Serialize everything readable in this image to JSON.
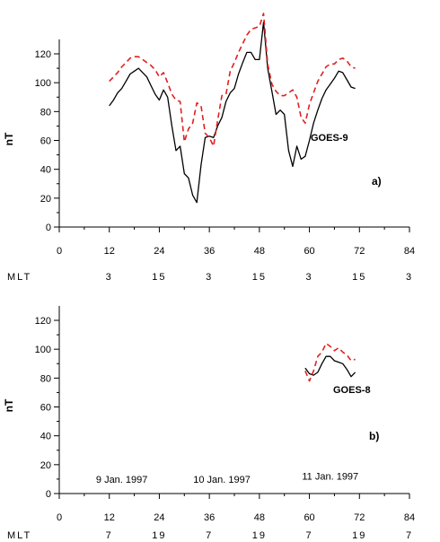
{
  "chart_data": [
    {
      "type": "line",
      "panel_label": "a)",
      "ylabel": "nT",
      "xlim": [
        0,
        84
      ],
      "ylim": [
        0,
        130
      ],
      "x_ticks": [
        0,
        12,
        24,
        36,
        48,
        60,
        72,
        84
      ],
      "x_tick_labels": [
        "0",
        "12",
        "24",
        "36",
        "48",
        "60",
        "72",
        "84"
      ],
      "y_ticks": [
        0,
        20,
        40,
        60,
        80,
        100,
        120
      ],
      "y_tick_labels": [
        "0",
        "20",
        "40",
        "60",
        "80",
        "100",
        "120"
      ],
      "annotation": "GOES-9",
      "mlt_label": "MLT",
      "mlt_values": [
        "3",
        "15",
        "3",
        "15",
        "3",
        "15",
        "3"
      ],
      "mlt_positions": [
        12,
        24,
        36,
        48,
        60,
        72,
        84
      ],
      "series": [
        {
          "style": "solid",
          "color": "#000000",
          "x": [
            12,
            13,
            14,
            15,
            16,
            17,
            18,
            19,
            20,
            21,
            22,
            23,
            24,
            25,
            26,
            27,
            28,
            29,
            30,
            31,
            32,
            33,
            34,
            35,
            36,
            37,
            38,
            39,
            40,
            41,
            42,
            43,
            44,
            45,
            46,
            47,
            48,
            49,
            50,
            51,
            52,
            53,
            54,
            55,
            56,
            57,
            58,
            59,
            60,
            61,
            62,
            63,
            64,
            65,
            66,
            67,
            68,
            69,
            70,
            71
          ],
          "y": [
            84,
            88,
            93,
            96,
            101,
            106,
            108,
            110,
            107,
            104,
            98,
            92,
            88,
            95,
            90,
            70,
            53,
            56,
            37,
            34,
            22,
            17,
            43,
            62,
            63,
            62,
            70,
            76,
            87,
            93,
            96,
            106,
            114,
            121,
            121,
            116,
            116,
            142,
            110,
            94,
            78,
            81,
            78,
            53,
            42,
            56,
            47,
            49,
            60,
            72,
            81,
            89,
            95,
            99,
            103,
            108,
            107,
            102,
            97,
            96
          ]
        },
        {
          "style": "dashed",
          "color": "#e02020",
          "x": [
            12,
            13,
            14,
            15,
            16,
            17,
            18,
            19,
            20,
            21,
            22,
            23,
            24,
            25,
            26,
            27,
            28,
            29,
            30,
            31,
            32,
            33,
            34,
            35,
            36,
            37,
            38,
            39,
            40,
            41,
            42,
            43,
            44,
            45,
            46,
            47,
            48,
            49,
            50,
            51,
            52,
            53,
            54,
            55,
            56,
            57,
            58,
            59,
            60,
            61,
            62,
            63,
            64,
            65,
            66,
            67,
            68,
            69,
            70,
            71
          ],
          "y": [
            101,
            104,
            107,
            111,
            114,
            117,
            118,
            118,
            116,
            114,
            112,
            109,
            104,
            107,
            100,
            92,
            88,
            87,
            59,
            68,
            72,
            86,
            84,
            65,
            62,
            56,
            74,
            91,
            92,
            108,
            114,
            121,
            127,
            133,
            137,
            138,
            139,
            148,
            113,
            99,
            94,
            91,
            91,
            93,
            95,
            90,
            76,
            72,
            85,
            93,
            101,
            106,
            111,
            113,
            113,
            116,
            117,
            115,
            111,
            110
          ]
        }
      ]
    },
    {
      "type": "line",
      "panel_label": "b)",
      "ylabel": "nT",
      "xlim": [
        0,
        84
      ],
      "ylim": [
        0,
        130
      ],
      "x_ticks": [
        0,
        12,
        24,
        36,
        48,
        60,
        72,
        84
      ],
      "x_tick_labels": [
        "0",
        "12",
        "24",
        "36",
        "48",
        "60",
        "72",
        "84"
      ],
      "y_ticks": [
        0,
        20,
        40,
        60,
        80,
        100,
        120
      ],
      "y_tick_labels": [
        "0",
        "20",
        "40",
        "60",
        "80",
        "100",
        "120"
      ],
      "annotation": "GOES-8",
      "dates": [
        {
          "text": "9 Jan. 1997",
          "x": 15,
          "y": 10
        },
        {
          "text": "10 Jan. 1997",
          "x": 39,
          "y": 10
        },
        {
          "text": "11 Jan. 1997",
          "x": 65,
          "y": 12
        }
      ],
      "mlt_label": "MLT",
      "mlt_values": [
        "7",
        "19",
        "7",
        "19",
        "7",
        "19",
        "7"
      ],
      "mlt_positions": [
        12,
        24,
        36,
        48,
        60,
        72,
        84
      ],
      "series": [
        {
          "style": "solid",
          "color": "#000000",
          "x": [
            59,
            60,
            61,
            62,
            63,
            64,
            65,
            66,
            67,
            68,
            69,
            70,
            71
          ],
          "y": [
            87,
            83,
            82,
            84,
            90,
            95,
            95,
            92,
            91,
            90,
            86,
            81,
            84
          ]
        },
        {
          "style": "dashed",
          "color": "#e02020",
          "x": [
            59,
            60,
            61,
            62,
            63,
            64,
            65,
            66,
            67,
            68,
            69,
            70,
            71
          ],
          "y": [
            85,
            78,
            85,
            95,
            98,
            104,
            102,
            99,
            101,
            98,
            96,
            92,
            93
          ]
        }
      ]
    }
  ]
}
